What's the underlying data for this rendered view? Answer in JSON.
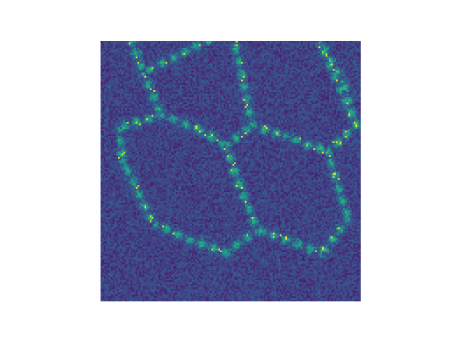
{
  "chart_data": {
    "type": "heatmap",
    "title": "",
    "xlabel": "",
    "ylabel": "",
    "axes_visible": false,
    "colormap": "viridis",
    "grid": [
      148,
      148
    ],
    "description_values": {
      "background_level": 0.25,
      "boundary_level": 0.6,
      "hotspot_level": 1.0
    },
    "boundary_nodes": [
      [
        0.1,
        -0.05
      ],
      [
        0.16,
        0.12
      ],
      [
        0.23,
        0.28
      ],
      [
        0.07,
        0.33
      ],
      [
        0.38,
        0.34
      ],
      [
        0.48,
        0.4
      ],
      [
        0.58,
        0.32
      ],
      [
        0.7,
        0.36
      ],
      [
        0.87,
        0.42
      ],
      [
        0.98,
        0.32
      ],
      [
        0.93,
        0.16
      ],
      [
        0.84,
        0.0
      ],
      [
        0.95,
        0.68
      ],
      [
        0.85,
        0.81
      ],
      [
        0.6,
        0.72
      ],
      [
        0.48,
        0.81
      ],
      [
        0.34,
        0.76
      ],
      [
        0.2,
        0.7
      ],
      [
        0.08,
        0.45
      ],
      [
        0.53,
        0.55
      ],
      [
        0.5,
        -0.05
      ]
    ],
    "boundary_edges": [
      [
        0,
        1
      ],
      [
        1,
        2
      ],
      [
        2,
        3
      ],
      [
        3,
        18
      ],
      [
        18,
        17
      ],
      [
        2,
        4
      ],
      [
        4,
        5
      ],
      [
        5,
        6
      ],
      [
        6,
        7
      ],
      [
        7,
        8
      ],
      [
        8,
        9
      ],
      [
        9,
        10
      ],
      [
        10,
        11
      ],
      [
        6,
        20
      ],
      [
        20,
        1
      ],
      [
        8,
        12
      ],
      [
        12,
        13
      ],
      [
        13,
        14
      ],
      [
        14,
        15
      ],
      [
        15,
        16
      ],
      [
        16,
        17
      ],
      [
        5,
        19
      ],
      [
        19,
        14
      ],
      [
        9,
        11
      ]
    ]
  }
}
